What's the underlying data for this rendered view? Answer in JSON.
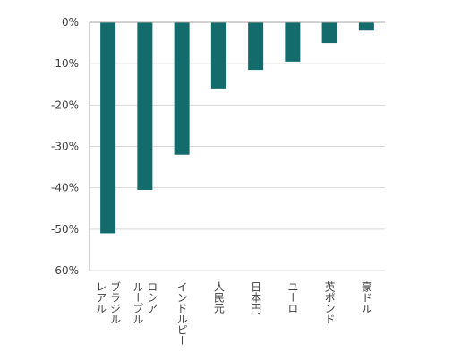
{
  "chart_data": {
    "type": "bar",
    "categories": [
      "ブラジルレアル",
      "ロシアルーブル",
      "インドルピー",
      "人民元",
      "日本円",
      "ユーロ",
      "英ポンド",
      "豪ドル"
    ],
    "category_lines": [
      [
        "ブラジル",
        "レアル"
      ],
      [
        "ロシア",
        "ルーブル"
      ],
      [
        "インドルピー"
      ],
      [
        "人民元"
      ],
      [
        "日本円"
      ],
      [
        "ユーロ"
      ],
      [
        "英ポンド"
      ],
      [
        "豪ドル"
      ]
    ],
    "values": [
      -51,
      -40.5,
      -32,
      -16,
      -11.5,
      -9.5,
      -5,
      -2
    ],
    "ylim": [
      -60,
      0
    ],
    "yticks": [
      0,
      -10,
      -20,
      -30,
      -40,
      -50,
      -60
    ],
    "ytick_labels": [
      "0%",
      "-10%",
      "-20%",
      "-30%",
      "-40%",
      "-50%",
      "-60%"
    ],
    "grid": true,
    "colors": {
      "bar": "#136B6B",
      "grid": "#D9D9D9",
      "axis": "#A6A6A6"
    }
  }
}
